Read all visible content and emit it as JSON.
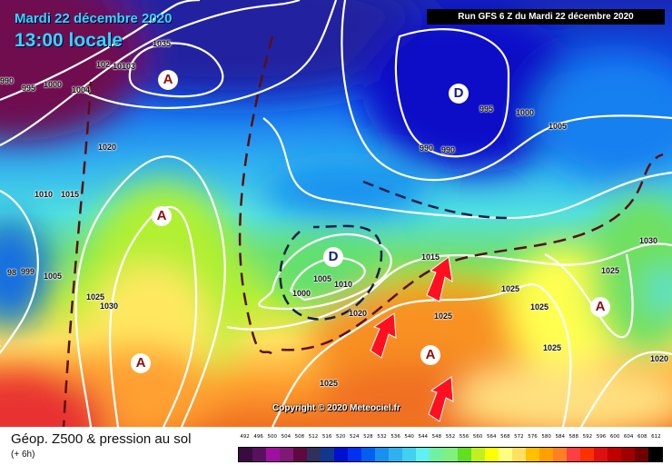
{
  "header": {
    "date": "Mardi 22 décembre 2020",
    "time": "13:00 locale",
    "run": "Run GFS 6 Z du Mardi 22 décembre 2020",
    "copyright": "Copyright © 2020 Meteociel.fr"
  },
  "footer": {
    "title": "Géop. Z500 & pression au sol",
    "lead": "(+ 6h)"
  },
  "legend": {
    "values": [
      "492",
      "496",
      "500",
      "504",
      "508",
      "512",
      "516",
      "520",
      "524",
      "528",
      "532",
      "536",
      "540",
      "544",
      "548",
      "552",
      "556",
      "560",
      "564",
      "568",
      "572",
      "576",
      "580",
      "584",
      "588",
      "592",
      "596",
      "600",
      "604",
      "608",
      "612"
    ],
    "colors": [
      "#3a0a40",
      "#5a1060",
      "#a010a0",
      "#801878",
      "#600840",
      "#303060",
      "#103890",
      "#0010d0",
      "#0030f0",
      "#0060f0",
      "#1890f0",
      "#30b0f0",
      "#40d0f0",
      "#60f0f0",
      "#70f0a0",
      "#80f080",
      "#60e020",
      "#c0f020",
      "#ffff00",
      "#ffff80",
      "#ffe060",
      "#ffc000",
      "#ffa000",
      "#ff8020",
      "#ff4040",
      "#ff3000",
      "#e01010",
      "#c00000",
      "#a00000",
      "#700000",
      "#000000"
    ]
  },
  "centers": [
    "A",
    "D",
    "A",
    "D",
    "A",
    "A",
    "A"
  ],
  "isobar_labels": [
    "1035",
    "102",
    "10103",
    "990",
    "995",
    "1000",
    "1004",
    "1020",
    "1010",
    "1015",
    "98",
    "999",
    "1005",
    "1025",
    "1030",
    "1005",
    "1010",
    "1000",
    "1020",
    "1015",
    "1025",
    "1025",
    "1025",
    "1025",
    "1025",
    "1030",
    "1020",
    "1025",
    "995",
    "1000",
    "1005",
    "990",
    "990"
  ],
  "colors": {
    "isobar": "#ffffff",
    "trough_line": "#5a1010",
    "low_dash": "#102050",
    "warm_advection_arrow": "#ff1020",
    "high_marker": "#8b1010",
    "low_marker": "#102080"
  }
}
